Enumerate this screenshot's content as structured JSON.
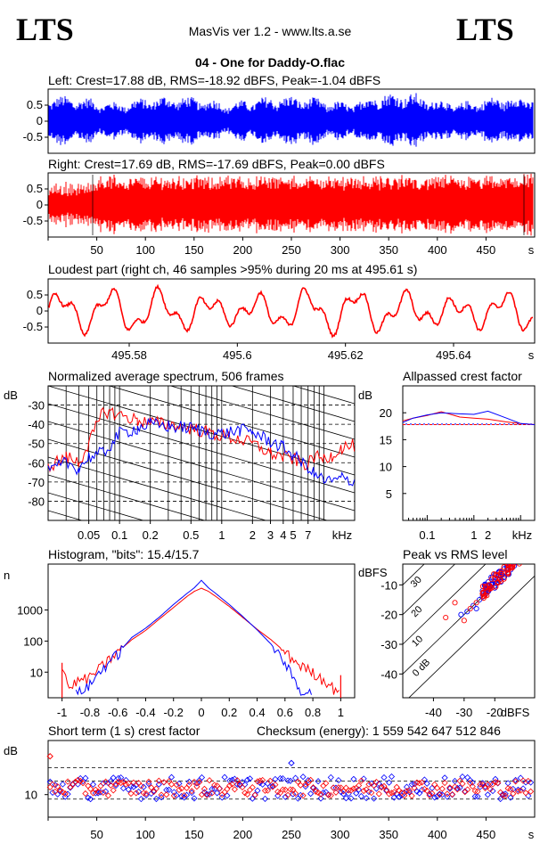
{
  "header": {
    "logo_left": "LTS",
    "logo_right": "LTS",
    "app": "MasVis ver 1.2 - www.lts.a.se",
    "file": "04 - One for Daddy-O.flac"
  },
  "colors": {
    "left": "#0000ff",
    "right": "#ff0000",
    "frame": "#000000"
  },
  "chart_data": [
    {
      "id": "left_wave",
      "type": "area",
      "title": "Left: Crest=17.88 dB, RMS=-18.92 dBFS, Peak=-1.04 dBFS",
      "ylim": [
        -1,
        1
      ],
      "yticks": [
        "0.5",
        "0",
        "-0.5"
      ],
      "series": [
        {
          "color": "blue"
        }
      ]
    },
    {
      "id": "right_wave",
      "type": "area",
      "title": "Right: Crest=17.69 dB, RMS=-17.69 dBFS, Peak=0.00 dBFS",
      "ylim": [
        -1,
        1
      ],
      "yticks": [
        "0.5",
        "0",
        "-0.5"
      ],
      "xlim": [
        0,
        500
      ],
      "xticks": [
        "50",
        "100",
        "150",
        "200",
        "250",
        "300",
        "350",
        "400",
        "450"
      ],
      "xunit": "s",
      "series": [
        {
          "color": "red"
        }
      ]
    },
    {
      "id": "loudest",
      "type": "line",
      "title": "Loudest part (right ch, 46 samples >95% during 20 ms at 495.61 s)",
      "ylim": [
        -1,
        1
      ],
      "yticks": [
        "0.5",
        "0",
        "-0.5"
      ],
      "xlim": [
        495.565,
        495.655
      ],
      "xticks": [
        "495.58",
        "495.6",
        "495.62",
        "495.64"
      ],
      "xunit": "s",
      "series": [
        {
          "color": "red"
        }
      ]
    },
    {
      "id": "spectrum",
      "type": "line",
      "title": "Normalized average spectrum, 506 frames",
      "ylabel": "dB",
      "ylim": [
        -90,
        -20
      ],
      "yticks": [
        "-30",
        "-40",
        "-50",
        "-60",
        "-70",
        "-80"
      ],
      "xscale": "log",
      "xlim": [
        0.02,
        20
      ],
      "xticks": [
        "0.05",
        "0.1",
        "0.2",
        "0.5",
        "1",
        "2",
        "3",
        "4",
        "5",
        "7"
      ],
      "xunit": "kHz",
      "x": [
        0.02,
        0.03,
        0.04,
        0.05,
        0.07,
        0.1,
        0.15,
        0.2,
        0.3,
        0.5,
        0.7,
        1,
        1.5,
        2,
        3,
        4,
        5,
        6,
        7,
        8,
        10,
        12,
        15,
        20
      ],
      "series": [
        {
          "color": "red",
          "values": [
            -62,
            -57,
            -60,
            -50,
            -33,
            -35,
            -38,
            -39,
            -40,
            -42,
            -44,
            -46,
            -48,
            -50,
            -55,
            -57,
            -58,
            -60,
            -61,
            -57,
            -58,
            -56,
            -52,
            -51
          ]
        },
        {
          "color": "blue",
          "values": [
            -65,
            -60,
            -63,
            -57,
            -55,
            -45,
            -42,
            -40,
            -41,
            -42,
            -44,
            -45,
            -43,
            -44,
            -49,
            -52,
            -56,
            -60,
            -62,
            -66,
            -69,
            -70,
            -68,
            -70
          ]
        }
      ]
    },
    {
      "id": "allpass",
      "type": "line",
      "title": "Allpassed crest factor",
      "ylabel": "dB",
      "ylim": [
        0,
        25
      ],
      "yticks": [
        "20",
        "15",
        "10",
        "5"
      ],
      "xscale": "log",
      "xlim": [
        0.03,
        20
      ],
      "xticks": [
        "0.1",
        "1",
        "2"
      ],
      "xunit": "kHz",
      "x": [
        0.03,
        0.05,
        0.1,
        0.2,
        0.5,
        1,
        2,
        5,
        10,
        20
      ],
      "series": [
        {
          "color": "red",
          "values": [
            18.5,
            19.0,
            19.5,
            20.2,
            19.2,
            19.0,
            18.8,
            18.3,
            18.0,
            17.8
          ]
        },
        {
          "color": "blue",
          "values": [
            18.2,
            19.0,
            19.6,
            20.0,
            19.8,
            19.7,
            20.3,
            19.0,
            18.0,
            17.8
          ]
        }
      ],
      "reference": {
        "red": 17.8,
        "blue": 17.9
      }
    },
    {
      "id": "histogram",
      "type": "line",
      "title": "Histogram, \"bits\": 15.4/15.7",
      "ylabel": "n",
      "yscale": "log",
      "ylim": [
        1.5,
        30000
      ],
      "yticks": [
        "1000",
        "100",
        "10"
      ],
      "xlim": [
        -1.1,
        1.1
      ],
      "xticks": [
        "-1",
        "-0.8",
        "-0.6",
        "-0.4",
        "-0.2",
        "0",
        "0.2",
        "0.4",
        "0.6",
        "0.8",
        "1"
      ],
      "x": [
        -1,
        -0.95,
        -0.9,
        -0.8,
        -0.7,
        -0.6,
        -0.5,
        -0.4,
        -0.3,
        -0.2,
        -0.1,
        -0.05,
        0,
        0.05,
        0.1,
        0.2,
        0.3,
        0.4,
        0.5,
        0.6,
        0.7,
        0.8,
        0.9,
        0.95,
        1
      ],
      "series": [
        {
          "color": "red",
          "values": [
            20,
            3,
            5,
            7,
            18,
            45,
            110,
            220,
            520,
            1200,
            2800,
            4000,
            5000,
            4000,
            2800,
            1300,
            560,
            240,
            110,
            45,
            18,
            10,
            5,
            3,
            3
          ]
        },
        {
          "color": "blue",
          "values": [
            null,
            null,
            2,
            4,
            15,
            40,
            130,
            260,
            600,
            1500,
            3500,
            5200,
            9000,
            5200,
            3500,
            1500,
            600,
            230,
            80,
            20,
            3,
            2,
            null,
            null,
            null
          ]
        }
      ]
    },
    {
      "id": "peak_rms",
      "type": "scatter",
      "title": "Peak vs RMS level",
      "ylabel": "dBFS",
      "xunit": "dBFS",
      "xlim": [
        -50,
        -7
      ],
      "ylim": [
        -48,
        -3
      ],
      "xticks": [
        "-40",
        "-30",
        "-20"
      ],
      "yticks": [
        "-10",
        "-20",
        "-30",
        "-40"
      ],
      "crest_lines": [
        "40",
        "30",
        "20",
        "10",
        "0 dB"
      ],
      "series": [
        {
          "color": "blue",
          "points": [
            [
              -31,
              -20
            ],
            [
              -29,
              -19
            ],
            [
              -27,
              -17
            ],
            [
              -26,
              -18
            ],
            [
              -25,
              -15
            ],
            [
              -24,
              -14
            ],
            [
              -23,
              -13
            ],
            [
              -22,
              -11
            ],
            [
              -21,
              -10
            ],
            [
              -20,
              -9
            ],
            [
              -19,
              -8
            ],
            [
              -18,
              -7
            ],
            [
              -17,
              -6
            ],
            [
              -16,
              -5
            ],
            [
              -22,
              -12
            ],
            [
              -24,
              -12
            ],
            [
              -20,
              -11
            ],
            [
              -18,
              -9
            ]
          ]
        },
        {
          "color": "red",
          "points": [
            [
              -36,
              -21
            ],
            [
              -33,
              -16
            ],
            [
              -30,
              -22
            ],
            [
              -28,
              -18
            ],
            [
              -26,
              -16
            ],
            [
              -24,
              -13
            ],
            [
              -23,
              -11
            ],
            [
              -22,
              -10
            ],
            [
              -21,
              -11
            ],
            [
              -20,
              -8
            ],
            [
              -19,
              -7
            ],
            [
              -18,
              -6
            ],
            [
              -17,
              -4
            ],
            [
              -16,
              -5
            ],
            [
              -15,
              -4
            ],
            [
              -14,
              -3
            ],
            [
              -19,
              -9
            ],
            [
              -17,
              -8
            ]
          ]
        }
      ]
    },
    {
      "id": "crest_short",
      "type": "scatter",
      "title": "Short term (1 s) crest factor",
      "extra_label": "Checksum (energy):  1 559 542 647 512 846",
      "ylabel": "dB",
      "ylim": [
        5,
        22
      ],
      "yticks": [
        "10"
      ],
      "xlim": [
        0,
        500
      ],
      "xticks": [
        "50",
        "100",
        "150",
        "200",
        "250",
        "300",
        "350",
        "400",
        "450"
      ],
      "xunit": "s",
      "series": [
        {
          "color": "blue"
        },
        {
          "color": "red"
        }
      ]
    }
  ]
}
